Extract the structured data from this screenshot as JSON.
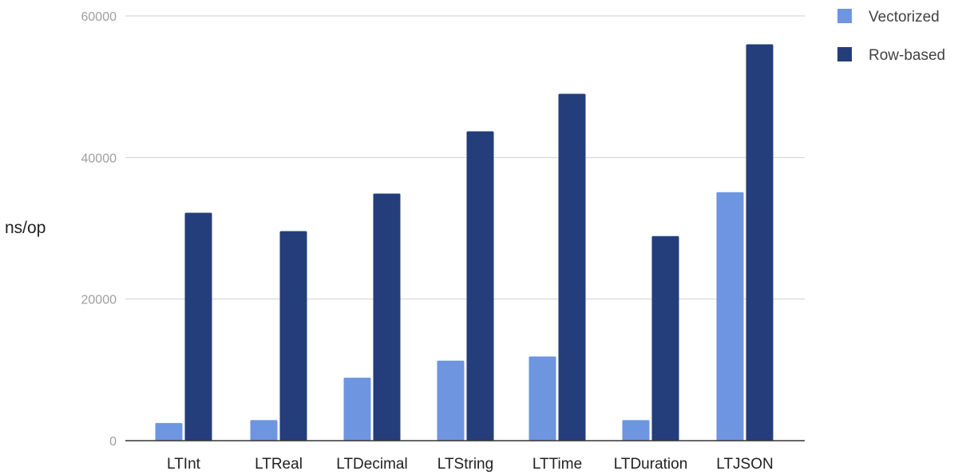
{
  "chart_data": {
    "type": "bar",
    "title": "",
    "xlabel": "",
    "ylabel": "ns/op",
    "categories": [
      "LTInt",
      "LTReal",
      "LTDecimal",
      "LTString",
      "LTTime",
      "LTDuration",
      "LTJSON"
    ],
    "series": [
      {
        "name": "Vectorized",
        "color": "#6d95e0",
        "values": [
          2500,
          2900,
          8900,
          11300,
          11900,
          2900,
          35100
        ]
      },
      {
        "name": "Row-based",
        "color": "#233e7a",
        "values": [
          32200,
          29600,
          34900,
          43700,
          49000,
          28900,
          56000
        ]
      }
    ],
    "ylim": [
      0,
      60000
    ],
    "yticks": [
      0,
      20000,
      40000,
      60000
    ],
    "grid": true,
    "legend_position": "top-right"
  }
}
